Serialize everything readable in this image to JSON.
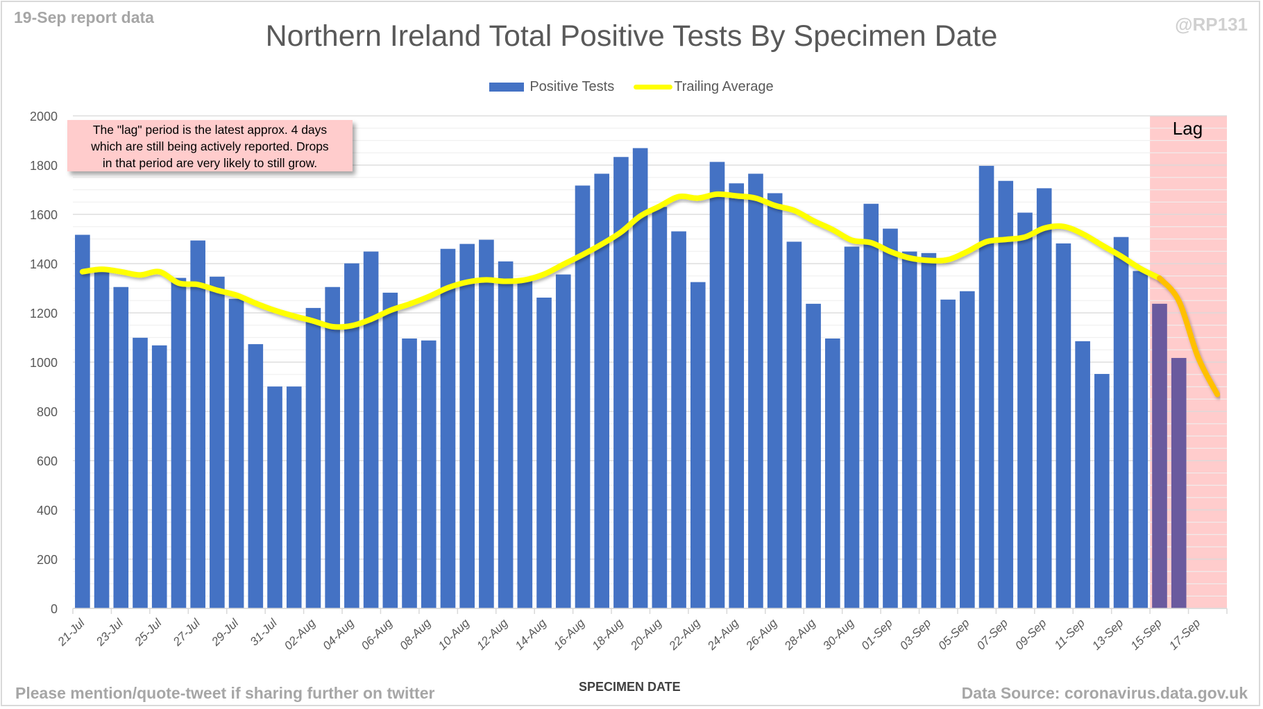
{
  "header": {
    "report_label": "19-Sep report data",
    "handle": "@RP131",
    "title": "Northern Ireland Total Positive Tests By Specimen Date"
  },
  "legend": {
    "items": [
      {
        "label": "Positive Tests",
        "color": "#4472c4",
        "kind": "bar"
      },
      {
        "label": "Trailing Average",
        "color": "#ffff00",
        "kind": "line"
      }
    ]
  },
  "annotation": {
    "lines": [
      "The \"lag\" period is the latest approx. 4 days",
      "which are still being actively reported.  Drops",
      "in that period are very likely to still grow."
    ]
  },
  "lag": {
    "label": "Lag",
    "start_date": "15-Sep",
    "end_date": "18-Sep",
    "shade_color": "#ffcccc",
    "bar_color": "#6a5a9e",
    "line_color": "#ffc000"
  },
  "footer": {
    "left": "Please mention/quote-tweet if sharing further on twitter",
    "right": "Data Source: coronavirus.data.gov.uk"
  },
  "chart_data": {
    "type": "bar",
    "title": "Northern Ireland Total Positive Tests By Specimen Date",
    "xlabel": "SPECIMEN DATE",
    "ylabel": "",
    "ylim": [
      0,
      2000
    ],
    "yticks": [
      0,
      200,
      400,
      600,
      800,
      1000,
      1200,
      1400,
      1600,
      1800,
      2000
    ],
    "grid": true,
    "legend_position": "top-center",
    "categories": [
      "21-Jul",
      "22-Jul",
      "23-Jul",
      "24-Jul",
      "25-Jul",
      "26-Jul",
      "27-Jul",
      "28-Jul",
      "29-Jul",
      "30-Jul",
      "31-Jul",
      "01-Aug",
      "02-Aug",
      "03-Aug",
      "04-Aug",
      "05-Aug",
      "06-Aug",
      "07-Aug",
      "08-Aug",
      "09-Aug",
      "10-Aug",
      "11-Aug",
      "12-Aug",
      "13-Aug",
      "14-Aug",
      "15-Aug",
      "16-Aug",
      "17-Aug",
      "18-Aug",
      "19-Aug",
      "20-Aug",
      "21-Aug",
      "22-Aug",
      "23-Aug",
      "24-Aug",
      "25-Aug",
      "26-Aug",
      "27-Aug",
      "28-Aug",
      "29-Aug",
      "30-Aug",
      "31-Aug",
      "01-Sep",
      "02-Sep",
      "03-Sep",
      "04-Sep",
      "05-Sep",
      "06-Sep",
      "07-Sep",
      "08-Sep",
      "09-Sep",
      "10-Sep",
      "11-Sep",
      "12-Sep",
      "13-Sep",
      "14-Sep",
      "15-Sep",
      "16-Sep",
      "17-Sep",
      "18-Sep"
    ],
    "xtick_labels": [
      "21-Jul",
      "23-Jul",
      "25-Jul",
      "27-Jul",
      "29-Jul",
      "31-Jul",
      "02-Aug",
      "04-Aug",
      "06-Aug",
      "08-Aug",
      "10-Aug",
      "12-Aug",
      "14-Aug",
      "16-Aug",
      "18-Aug",
      "20-Aug",
      "22-Aug",
      "24-Aug",
      "26-Aug",
      "28-Aug",
      "30-Aug",
      "01-Sep",
      "03-Sep",
      "05-Sep",
      "07-Sep",
      "09-Sep",
      "11-Sep",
      "13-Sep",
      "15-Sep",
      "17-Sep"
    ],
    "series": [
      {
        "name": "Positive Tests",
        "type": "bar",
        "values": [
          1517,
          1375,
          1305,
          1099,
          1068,
          1342,
          1494,
          1347,
          1257,
          1073,
          901,
          901,
          1220,
          1305,
          1401,
          1449,
          1282,
          1096,
          1088,
          1460,
          1480,
          1497,
          1409,
          1330,
          1262,
          1356,
          1717,
          1765,
          1833,
          1869,
          1630,
          1531,
          1325,
          1813,
          1726,
          1765,
          1686,
          1489,
          1237,
          1096,
          1469,
          1643,
          1542,
          1449,
          1443,
          1254,
          1288,
          1797,
          1736,
          1607,
          1706,
          1482,
          1085,
          952,
          1508,
          1370,
          1237,
          1017,
          null,
          null
        ]
      },
      {
        "name": "Trailing Average",
        "type": "line",
        "values": [
          1367,
          1377,
          1367,
          1354,
          1367,
          1321,
          1315,
          1292,
          1272,
          1239,
          1210,
          1187,
          1167,
          1144,
          1148,
          1174,
          1210,
          1236,
          1266,
          1302,
          1325,
          1334,
          1328,
          1334,
          1357,
          1397,
          1436,
          1479,
          1528,
          1593,
          1633,
          1672,
          1666,
          1682,
          1675,
          1666,
          1636,
          1616,
          1574,
          1538,
          1495,
          1485,
          1449,
          1423,
          1413,
          1416,
          1449,
          1489,
          1498,
          1508,
          1544,
          1551,
          1521,
          1475,
          1430,
          1380,
          1341,
          1249,
          1020,
          869
        ]
      }
    ]
  }
}
